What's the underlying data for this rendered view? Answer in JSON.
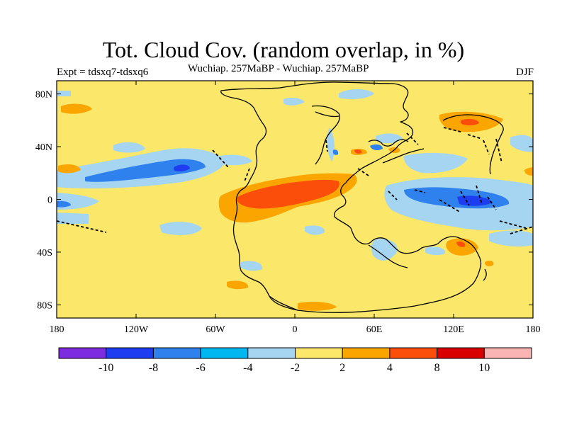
{
  "header": {
    "title": "Tot. Cloud Cov. (random overlap, in %)",
    "experiment": "Expt = tdsxq7-tdsxq6",
    "subtitle": "Wuchiap. 257MaBP - Wuchiap. 257MaBP",
    "season": "DJF"
  },
  "map": {
    "projection": "cylindrical-equidistant",
    "lon_range": [
      -180,
      180
    ],
    "lat_range": [
      -90,
      90
    ],
    "lon_ticks": [
      {
        "value": -180,
        "label": "180"
      },
      {
        "value": -120,
        "label": "120W"
      },
      {
        "value": -60,
        "label": "60W"
      },
      {
        "value": 0,
        "label": "0"
      },
      {
        "value": 60,
        "label": "60E"
      },
      {
        "value": 120,
        "label": "120E"
      },
      {
        "value": 180,
        "label": "180"
      }
    ],
    "lat_ticks": [
      {
        "value": 80,
        "label": "80N"
      },
      {
        "value": 40,
        "label": "40N"
      },
      {
        "value": 0,
        "label": "0"
      },
      {
        "value": -40,
        "label": "40S"
      },
      {
        "value": -80,
        "label": "80S"
      }
    ],
    "background_color": "#fbe86a",
    "field_description": "Difference in total cloud cover (percent); mostly within -2 to 2, a negative band across the tropical Pacific and Tethys, positive anomalies over the northern tropical continental margin near 0-60E."
  },
  "colorbar": {
    "colors": [
      "#7d2ce0",
      "#1e3cf0",
      "#2f82ee",
      "#00b7f0",
      "#a5d5f0",
      "#fbe86a",
      "#fba600",
      "#fb4e0b",
      "#d80000",
      "#fbb4b4"
    ],
    "labels": [
      "-10",
      "-8",
      "-6",
      "-4",
      "-2",
      "2",
      "4",
      "8",
      "10"
    ]
  }
}
